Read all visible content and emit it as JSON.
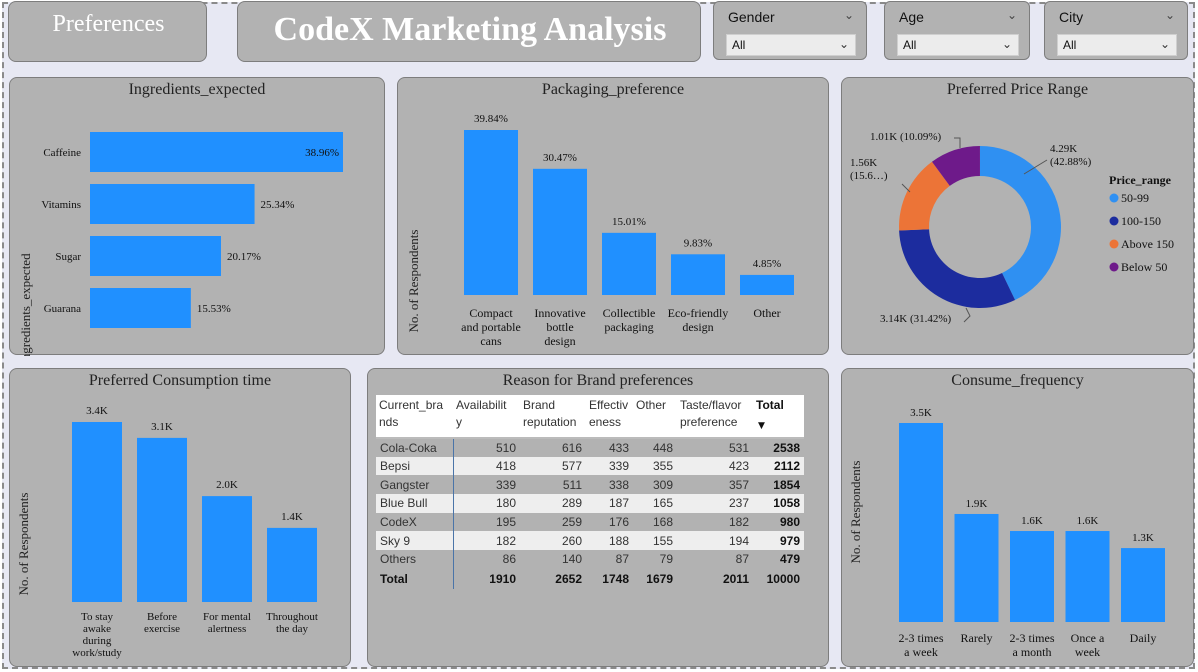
{
  "colors": {
    "bar": "#2090ff",
    "card": "#b2b2b2",
    "p50": "#2f90f2",
    "p100": "#1c2c9e",
    "pAbove": "#ec7437",
    "pBelow": "#6e1a8a"
  },
  "header": {
    "preferences_label": "Preferences",
    "title": "CodeX Marketing Analysis"
  },
  "filters": [
    {
      "label": "Gender",
      "value": "All"
    },
    {
      "label": "Age",
      "value": "All"
    },
    {
      "label": "City",
      "value": "All"
    }
  ],
  "chart_data": [
    {
      "type": "bar",
      "orientation": "horizontal",
      "title": "Ingredients_expected",
      "ylabel": "Ingredients_expected",
      "categories": [
        "Caffeine",
        "Vitamins",
        "Sugar",
        "Guarana"
      ],
      "values": [
        38.96,
        25.34,
        20.17,
        15.53
      ],
      "labels": [
        "38.96%",
        "25.34%",
        "20.17%",
        "15.53%"
      ]
    },
    {
      "type": "bar",
      "title": "Packaging_preference",
      "ylabel": "No. of Respondents",
      "categories": [
        [
          "Compact",
          "and portable",
          "cans"
        ],
        [
          "Innovative",
          "bottle",
          "design"
        ],
        [
          "Collectible",
          "packaging"
        ],
        [
          "Eco-friendly",
          "design"
        ],
        [
          "Other"
        ]
      ],
      "values": [
        39.84,
        30.47,
        15.01,
        9.83,
        4.85
      ],
      "labels": [
        "39.84%",
        "30.47%",
        "15.01%",
        "9.83%",
        "4.85%"
      ]
    },
    {
      "type": "pie",
      "title": "Preferred Price Range",
      "legend_title": "Price_range",
      "legend_position": "right",
      "slices": [
        {
          "name": "50-99",
          "value": 4290,
          "percent": 42.88,
          "label": [
            "4.29K",
            "(42.88%)"
          ]
        },
        {
          "name": "100-150",
          "value": 3140,
          "percent": 31.42,
          "label": [
            "3.14K (31.42%)"
          ]
        },
        {
          "name": "Above 150",
          "value": 1560,
          "percent": 15.6,
          "label": [
            "1.56K",
            "(15.6…)"
          ]
        },
        {
          "name": "Below 50",
          "value": 1010,
          "percent": 10.09,
          "label": [
            "1.01K (10.09%)"
          ]
        }
      ]
    },
    {
      "type": "bar",
      "title": "Preferred Consumption time",
      "ylabel": "No. of Respondents",
      "categories": [
        [
          "To stay",
          "awake",
          "during",
          "work/study"
        ],
        [
          "Before",
          "exercise"
        ],
        [
          "For mental",
          "alertness"
        ],
        [
          "Throughout",
          "the day"
        ]
      ],
      "values": [
        3400,
        3100,
        2000,
        1400
      ],
      "labels": [
        "3.4K",
        "3.1K",
        "2.0K",
        "1.4K"
      ]
    },
    {
      "type": "table",
      "title": "Reason for Brand preferences",
      "columns": [
        [
          "Current_bra",
          "nds"
        ],
        [
          "Availabilit",
          "y"
        ],
        [
          "Brand",
          "reputation"
        ],
        [
          "Effectiv",
          "eness"
        ],
        [
          "Other"
        ],
        [
          "Taste/flavor",
          "preference"
        ],
        [
          "Total"
        ]
      ],
      "rows": [
        [
          "Cola-Coka",
          "510",
          "616",
          "433",
          "448",
          "531",
          "2538"
        ],
        [
          "Bepsi",
          "418",
          "577",
          "339",
          "355",
          "423",
          "2112"
        ],
        [
          "Gangster",
          "339",
          "511",
          "338",
          "309",
          "357",
          "1854"
        ],
        [
          "Blue Bull",
          "180",
          "289",
          "187",
          "165",
          "237",
          "1058"
        ],
        [
          "CodeX",
          "195",
          "259",
          "176",
          "168",
          "182",
          "980"
        ],
        [
          "Sky 9",
          "182",
          "260",
          "188",
          "155",
          "194",
          "979"
        ],
        [
          "Others",
          "86",
          "140",
          "87",
          "79",
          "87",
          "479"
        ]
      ],
      "total": [
        "Total",
        "1910",
        "2652",
        "1748",
        "1679",
        "2011",
        "10000"
      ]
    },
    {
      "type": "bar",
      "title": "Consume_frequency",
      "ylabel": "No. of Respondents",
      "categories": [
        [
          "2-3 times",
          "a week"
        ],
        [
          "Rarely"
        ],
        [
          "2-3 times",
          "a month"
        ],
        [
          "Once a",
          "week"
        ],
        [
          "Daily"
        ]
      ],
      "values": [
        3500,
        1900,
        1600,
        1600,
        1300
      ],
      "labels": [
        "3.5K",
        "1.9K",
        "1.6K",
        "1.6K",
        "1.3K"
      ]
    }
  ]
}
